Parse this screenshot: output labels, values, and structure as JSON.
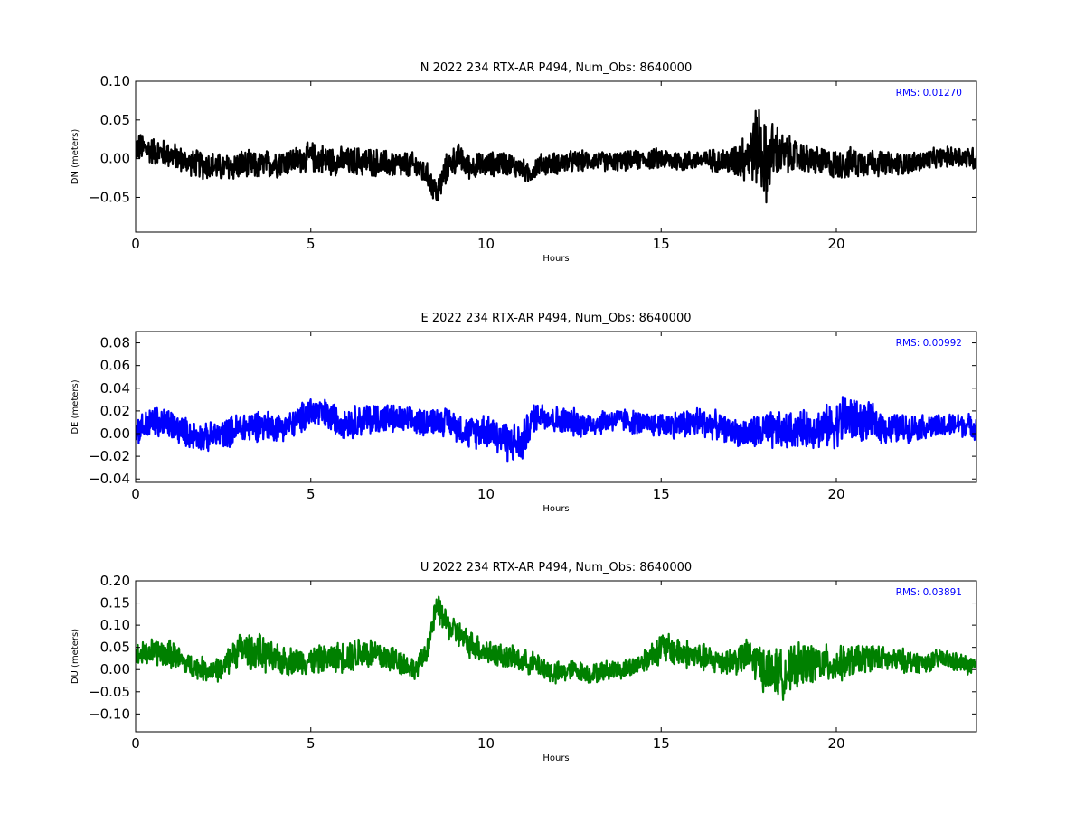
{
  "chart_data": [
    {
      "type": "line",
      "title": "N 2022 234 RTX-AR  P494, Num_Obs: 8640000",
      "xlabel": "Hours",
      "ylabel": "DN (meters)",
      "xlim": [
        0,
        24
      ],
      "ylim": [
        -0.095,
        0.1
      ],
      "xticks": [
        0,
        5,
        10,
        15,
        20
      ],
      "xtick_labels": [
        "0",
        "5",
        "10",
        "15",
        "20"
      ],
      "yticks": [
        -0.05,
        0.0,
        0.05,
        0.1
      ],
      "ytick_labels": [
        "−0.05",
        "0.00",
        "0.05",
        "0.10"
      ],
      "annotation": "RMS:  0.01270",
      "color": "#000000",
      "annotation_color": "#0000ff",
      "grid": false,
      "series": [
        {
          "x": [
            0,
            0.5,
            1,
            1.5,
            2,
            2.5,
            3,
            3.5,
            4,
            4.5,
            5,
            5.5,
            6,
            6.5,
            7,
            7.5,
            8,
            8.3,
            8.6,
            8.9,
            9.2,
            9.5,
            10,
            10.5,
            11,
            11.2,
            11.5,
            12,
            12.5,
            13,
            13.5,
            14,
            14.5,
            15,
            15.5,
            16,
            16.5,
            17,
            17.5,
            17.8,
            18,
            18.2,
            18.5,
            19,
            19.5,
            20,
            20.5,
            21,
            21.5,
            22,
            22.5,
            23,
            23.5,
            24
          ],
          "y": [
            0.015,
            0.01,
            0.005,
            -0.005,
            -0.008,
            -0.012,
            -0.008,
            -0.01,
            -0.005,
            -0.003,
            0.002,
            -0.002,
            -0.004,
            -0.003,
            -0.006,
            -0.008,
            -0.01,
            -0.02,
            -0.045,
            -0.01,
            0.002,
            -0.01,
            -0.008,
            -0.005,
            -0.012,
            -0.02,
            -0.008,
            -0.006,
            -0.004,
            -0.002,
            -0.004,
            -0.003,
            -0.001,
            0.0,
            -0.003,
            -0.002,
            -0.002,
            -0.004,
            0.005,
            0.02,
            -0.01,
            0.01,
            0.005,
            0.002,
            -0.004,
            -0.008,
            -0.005,
            -0.004,
            -0.007,
            -0.006,
            -0.003,
            0.002,
            0.003,
            0.0
          ],
          "band": [
            0.022,
            0.02,
            0.02,
            0.018,
            0.022,
            0.02,
            0.022,
            0.02,
            0.022,
            0.02,
            0.022,
            0.022,
            0.02,
            0.022,
            0.02,
            0.02,
            0.02,
            0.018,
            0.02,
            0.022,
            0.02,
            0.018,
            0.018,
            0.018,
            0.016,
            0.015,
            0.016,
            0.016,
            0.016,
            0.014,
            0.014,
            0.014,
            0.014,
            0.016,
            0.016,
            0.014,
            0.016,
            0.022,
            0.04,
            0.065,
            0.055,
            0.045,
            0.03,
            0.022,
            0.022,
            0.022,
            0.022,
            0.02,
            0.018,
            0.016,
            0.016,
            0.014,
            0.016,
            0.018
          ]
        }
      ]
    },
    {
      "type": "line",
      "title": "E 2022 234 RTX-AR  P494, Num_Obs: 8640000",
      "xlabel": "Hours",
      "ylabel": "DE (meters)",
      "xlim": [
        0,
        24
      ],
      "ylim": [
        -0.043,
        0.09
      ],
      "xticks": [
        0,
        5,
        10,
        15,
        20
      ],
      "xtick_labels": [
        "0",
        "5",
        "10",
        "15",
        "20"
      ],
      "yticks": [
        -0.04,
        -0.02,
        0.0,
        0.02,
        0.04,
        0.06,
        0.08
      ],
      "ytick_labels": [
        "−0.04",
        "−0.02",
        "0.00",
        "0.02",
        "0.04",
        "0.06",
        "0.08"
      ],
      "annotation": "RMS:  0.00992",
      "color": "#0000ff",
      "annotation_color": "#0000ff",
      "grid": false,
      "series": [
        {
          "x": [
            0,
            0.5,
            1,
            1.5,
            2,
            2.5,
            3,
            3.5,
            4,
            4.5,
            5,
            5.5,
            6,
            6.5,
            7,
            7.5,
            8,
            8.5,
            9,
            9.5,
            10,
            10.5,
            11,
            11.3,
            11.5,
            12,
            12.5,
            13,
            13.5,
            14,
            14.5,
            15,
            15.5,
            16,
            16.5,
            17,
            17.5,
            18,
            18.5,
            19,
            19.5,
            20,
            20.3,
            20.5,
            21,
            21.5,
            22,
            22.5,
            23,
            23.5,
            24
          ],
          "y": [
            0.003,
            0.01,
            0.008,
            0.0,
            -0.004,
            0.0,
            0.005,
            0.008,
            0.006,
            0.008,
            0.02,
            0.015,
            0.01,
            0.012,
            0.014,
            0.012,
            0.01,
            0.012,
            0.01,
            0.0,
            0.005,
            -0.005,
            -0.01,
            0.01,
            0.018,
            0.012,
            0.01,
            0.008,
            0.012,
            0.012,
            0.008,
            0.008,
            0.008,
            0.01,
            0.008,
            0.002,
            0.0,
            0.002,
            0.002,
            0.004,
            0.005,
            0.008,
            0.015,
            0.012,
            0.01,
            0.004,
            0.005,
            0.006,
            0.006,
            0.008,
            0.006
          ],
          "band": [
            0.014,
            0.016,
            0.016,
            0.014,
            0.014,
            0.014,
            0.016,
            0.016,
            0.014,
            0.014,
            0.016,
            0.016,
            0.016,
            0.016,
            0.016,
            0.014,
            0.014,
            0.014,
            0.014,
            0.016,
            0.018,
            0.02,
            0.02,
            0.016,
            0.014,
            0.014,
            0.014,
            0.012,
            0.012,
            0.012,
            0.012,
            0.012,
            0.014,
            0.016,
            0.014,
            0.012,
            0.016,
            0.02,
            0.018,
            0.018,
            0.02,
            0.022,
            0.03,
            0.022,
            0.018,
            0.016,
            0.014,
            0.012,
            0.012,
            0.012,
            0.012
          ]
        }
      ]
    },
    {
      "type": "line",
      "title": "U 2022 234 RTX-AR  P494, Num_Obs: 8640000",
      "xlabel": "Hours",
      "ylabel": "DU (meters)",
      "xlim": [
        0,
        24
      ],
      "ylim": [
        -0.14,
        0.2
      ],
      "xticks": [
        0,
        5,
        10,
        15,
        20
      ],
      "xtick_labels": [
        "0",
        "5",
        "10",
        "15",
        "20"
      ],
      "yticks": [
        -0.1,
        -0.05,
        0.0,
        0.05,
        0.1,
        0.15,
        0.2
      ],
      "ytick_labels": [
        "−0.10",
        "−0.05",
        "0.00",
        "0.05",
        "0.10",
        "0.15",
        "0.20"
      ],
      "annotation": "RMS:  0.03891",
      "color": "#008000",
      "annotation_color": "#0000ff",
      "grid": false,
      "series": [
        {
          "x": [
            0,
            0.5,
            1,
            1.5,
            2,
            2.5,
            2.8,
            3,
            3.5,
            4,
            4.5,
            5,
            5.5,
            6,
            6.5,
            7,
            7.5,
            8,
            8.3,
            8.6,
            8.9,
            9.2,
            9.5,
            10,
            10.5,
            11,
            11.5,
            12,
            12.5,
            13,
            13.5,
            14,
            14.5,
            15,
            15.5,
            16,
            16.5,
            17,
            17.5,
            18,
            18.5,
            19,
            19.5,
            20,
            20.5,
            21,
            21.5,
            22,
            22.5,
            23,
            23.5,
            24
          ],
          "y": [
            0.03,
            0.04,
            0.035,
            0.01,
            0.0,
            0.0,
            0.04,
            0.045,
            0.04,
            0.02,
            0.02,
            0.02,
            0.025,
            0.03,
            0.04,
            0.03,
            0.02,
            0.0,
            0.04,
            0.14,
            0.1,
            0.08,
            0.06,
            0.04,
            0.03,
            0.02,
            0.01,
            -0.01,
            0.0,
            -0.01,
            0.0,
            0.0,
            0.02,
            0.05,
            0.04,
            0.03,
            0.02,
            0.02,
            0.03,
            0.0,
            -0.01,
            0.01,
            0.015,
            0.01,
            0.02,
            0.03,
            0.02,
            0.02,
            0.015,
            0.025,
            0.015,
            0.005
          ],
          "band": [
            0.03,
            0.035,
            0.035,
            0.03,
            0.03,
            0.03,
            0.04,
            0.045,
            0.045,
            0.04,
            0.035,
            0.035,
            0.035,
            0.04,
            0.045,
            0.04,
            0.035,
            0.025,
            0.03,
            0.035,
            0.035,
            0.035,
            0.035,
            0.035,
            0.03,
            0.03,
            0.03,
            0.03,
            0.025,
            0.025,
            0.025,
            0.025,
            0.03,
            0.04,
            0.04,
            0.035,
            0.035,
            0.035,
            0.045,
            0.06,
            0.06,
            0.055,
            0.05,
            0.045,
            0.04,
            0.035,
            0.03,
            0.03,
            0.025,
            0.025,
            0.025,
            0.025
          ]
        }
      ]
    }
  ]
}
